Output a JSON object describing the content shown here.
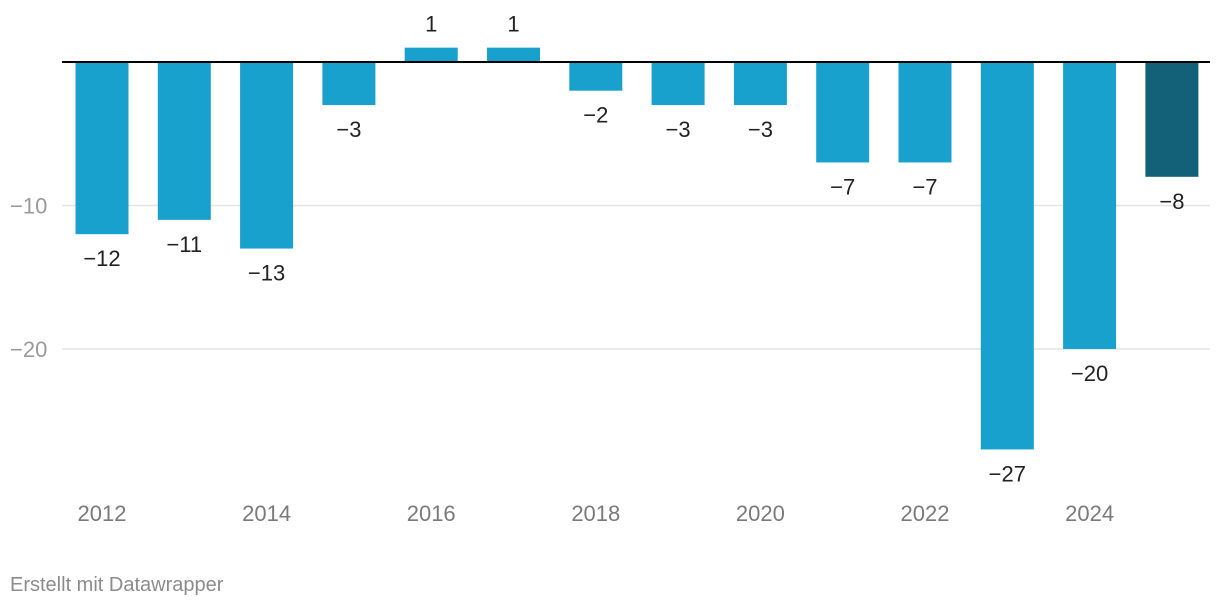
{
  "chart_data": {
    "type": "bar",
    "categories": [
      "2012",
      "2013",
      "2014",
      "2015",
      "2016",
      "2017",
      "2018",
      "2019",
      "2020",
      "2021",
      "2022",
      "2023",
      "2024",
      "2025"
    ],
    "values": [
      -12,
      -11,
      -13,
      -3,
      1,
      1,
      -2,
      -3,
      -3,
      -7,
      -7,
      -27,
      -20,
      -8
    ],
    "value_labels": [
      "−12",
      "−11",
      "−13",
      "−3",
      "1",
      "1",
      "−2",
      "−3",
      "−3",
      "−7",
      "−7",
      "−27",
      "−20",
      "−8"
    ],
    "x_tick_labels": [
      "2012",
      "",
      "2014",
      "",
      "2016",
      "",
      "2018",
      "",
      "2020",
      "",
      "2022",
      "",
      "2024",
      ""
    ],
    "y_ticks": [
      {
        "value": -10,
        "label": "−10"
      },
      {
        "value": -20,
        "label": "−20"
      }
    ],
    "ylim": [
      -28.5,
      2
    ],
    "grid": true,
    "colors": {
      "bar": "#18a1cd",
      "highlight_bar": "#136079",
      "highlight_index": 13,
      "grid": "#e3e3e3",
      "zero_line": "#000000"
    },
    "title": "",
    "xlabel": "",
    "ylabel": ""
  },
  "footer": {
    "credit": "Erstellt mit Datawrapper"
  }
}
